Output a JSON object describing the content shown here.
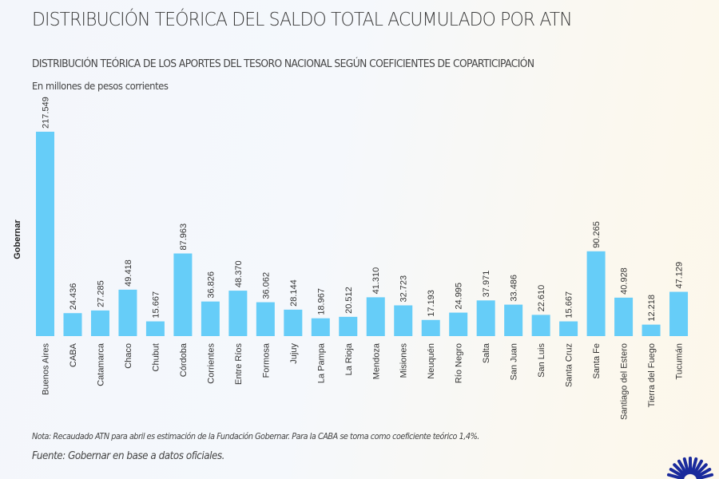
{
  "header": {
    "title": "DISTRIBUCIÓN TEÓRICA DEL SALDO TOTAL ACUMULADO POR ATN",
    "subtitle": "DISTRIBUCIÓN TEÓRICA DE LOS APORTES DEL TESORO NACIONAL SEGÚN COEFICIENTES DE COPARTICIPACIÓN",
    "units": "En millones de pesos corrientes"
  },
  "footer": {
    "note": "Nota: Recaudado ATN para abril es estimación de la Fundación Gobernar. Para la CABA se toma como coeficiente teórico 1,4%.",
    "source": "Fuente: Gobernar en base a datos oficiales."
  },
  "logo": {
    "icon": "sunburst-logo-icon",
    "color": "#1a2a9c"
  },
  "chart_data": {
    "type": "bar",
    "title": "DISTRIBUCIÓN TEÓRICA DEL SALDO TOTAL ACUMULADO POR ATN",
    "subtitle": "DISTRIBUCIÓN TEÓRICA DE LOS APORTES DEL TESORO NACIONAL SEGÚN COEFICIENTES DE COPARTICIPACIÓN",
    "xlabel": "",
    "ylabel": "Gobernar",
    "units": "En millones de pesos corrientes",
    "ylim": [
      0,
      220
    ],
    "grid": false,
    "bar_color": "#66cdf8",
    "categories": [
      "Buenos Aires",
      "CABA",
      "Catamarca",
      "Chaco",
      "Chubut",
      "Córdoba",
      "Corrientes",
      "Entre Ríos",
      "Formosa",
      "Jujuy",
      "La Pampa",
      "La Rioja",
      "Mendoza",
      "Misiones",
      "Neuquén",
      "Río Negro",
      "Salta",
      "San Juan",
      "San Luis",
      "Santa Cruz",
      "Santa Fe",
      "Santiago del Estero",
      "Tierra del Fuego",
      "Tucumán"
    ],
    "values": [
      217.549,
      24.436,
      27.285,
      49.418,
      15.667,
      87.963,
      36.826,
      48.37,
      36.062,
      28.144,
      18.967,
      20.512,
      41.31,
      32.723,
      17.193,
      24.995,
      37.971,
      33.486,
      22.61,
      15.667,
      90.265,
      40.928,
      12.218,
      47.129
    ],
    "data_labels": [
      "217.549",
      "24.436",
      "27.285",
      "49.418",
      "15.667",
      "87.963",
      "36.826",
      "48.370",
      "36.062",
      "28.144",
      "18.967",
      "20.512",
      "41.310",
      "32.723",
      "17.193",
      "24.995",
      "37.971",
      "33.486",
      "22.610",
      "15.667",
      "90.265",
      "40.928",
      "12.218",
      "47.129"
    ]
  }
}
